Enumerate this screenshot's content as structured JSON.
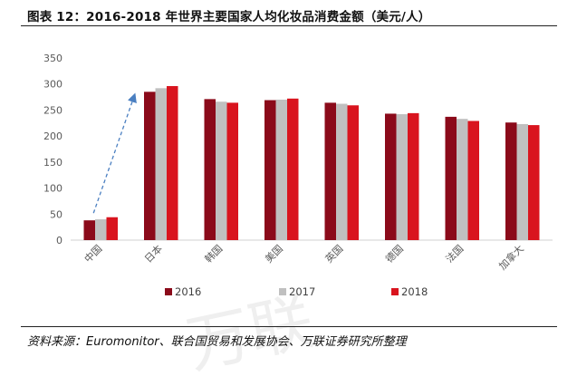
{
  "header": {
    "title": "图表 12：2016-2018 年世界主要国家人均化妆品消费金额（美元/人）"
  },
  "footer": {
    "source": "资料来源：Euromonitor、联合国贸易和发展协会、万联证券研究所整理"
  },
  "chart_data": {
    "type": "bar",
    "title": "图表 12：2016-2018 年世界主要国家人均化妆品消费金额（美元/人）",
    "xlabel": "",
    "ylabel": "",
    "ylim": [
      0,
      350
    ],
    "yticks": [
      0,
      50,
      100,
      150,
      200,
      250,
      300,
      350
    ],
    "grid": false,
    "legend_position": "bottom",
    "categories": [
      "中国",
      "日本",
      "韩国",
      "美国",
      "英国",
      "德国",
      "法国",
      "加拿大"
    ],
    "series": [
      {
        "name": "2016",
        "color": "#8B0A1A",
        "values": [
          38,
          285,
          271,
          269,
          264,
          243,
          237,
          226
        ]
      },
      {
        "name": "2017",
        "color": "#C0C0C0",
        "values": [
          40,
          292,
          266,
          270,
          262,
          242,
          233,
          223
        ]
      },
      {
        "name": "2018",
        "color": "#D9141E",
        "values": [
          44,
          296,
          264,
          272,
          259,
          244,
          229,
          221
        ]
      }
    ],
    "annotations": [
      {
        "type": "dashed-arrow",
        "color": "#4A7FC1",
        "from_category": "中国",
        "to_category": "日本",
        "meaning": "growth trend"
      }
    ]
  }
}
